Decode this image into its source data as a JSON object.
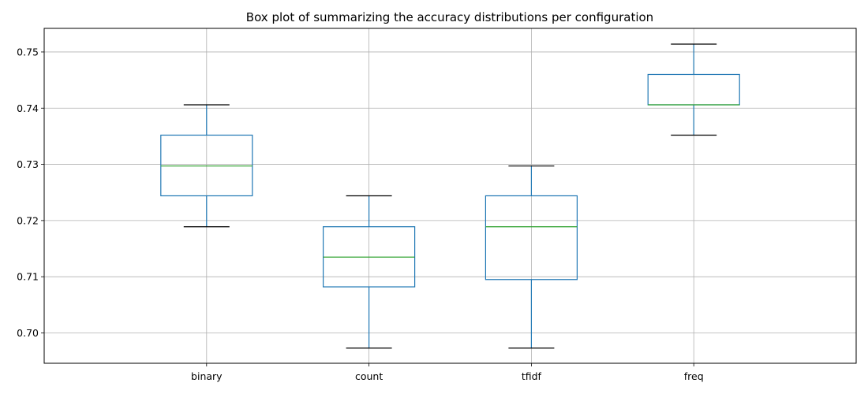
{
  "chart_data": {
    "type": "box",
    "title": "Box plot of summarizing the accuracy distributions per configuration",
    "xlabel": "",
    "ylabel": "",
    "categories": [
      "binary",
      "count",
      "tfidf",
      "freq"
    ],
    "ylim": [
      0.6946,
      0.7542
    ],
    "yticks": [
      0.7,
      0.71,
      0.72,
      0.73,
      0.74,
      0.75
    ],
    "ytick_labels": [
      "0.70",
      "0.71",
      "0.72",
      "0.73",
      "0.74",
      "0.75"
    ],
    "grid": true,
    "boxes": [
      {
        "category": "binary",
        "whisker_low": 0.7189,
        "q1": 0.7244,
        "median": 0.7297,
        "q3": 0.7352,
        "whisker_high": 0.7406
      },
      {
        "category": "count",
        "whisker_low": 0.6973,
        "q1": 0.7082,
        "median": 0.7135,
        "q3": 0.7189,
        "whisker_high": 0.7244
      },
      {
        "category": "tfidf",
        "whisker_low": 0.6973,
        "q1": 0.7095,
        "median": 0.7189,
        "q3": 0.7244,
        "whisker_high": 0.7297
      },
      {
        "category": "freq",
        "whisker_low": 0.7352,
        "q1": 0.7406,
        "median": 0.7406,
        "q3": 0.746,
        "whisker_high": 0.7514
      }
    ],
    "colors": {
      "box": "#1f77b4",
      "median": "#2ca02c",
      "cap": "#000000",
      "grid": "#b0b0b0",
      "axis": "#000000"
    }
  }
}
